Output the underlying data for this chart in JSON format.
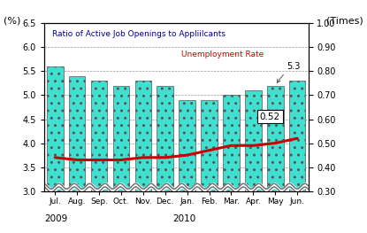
{
  "months": [
    "Jul.",
    "Aug.",
    "Sep.",
    "Oct.",
    "Nov.",
    "Dec.",
    "Jan.",
    "Feb.",
    "Mar.",
    "Apr.",
    "May",
    "Jun."
  ],
  "unemployment_rate": [
    5.6,
    5.4,
    5.3,
    5.2,
    5.3,
    5.2,
    4.9,
    4.9,
    5.0,
    5.1,
    5.2,
    5.3
  ],
  "job_ratio": [
    0.44,
    0.43,
    0.43,
    0.43,
    0.44,
    0.44,
    0.45,
    0.47,
    0.49,
    0.49,
    0.5,
    0.52
  ],
  "bar_color": "#40E0D0",
  "bar_edge_color": "#555555",
  "line_color": "#CC0000",
  "ylabel_left": "(%)",
  "ylabel_right": "(Times)",
  "ylim_left": [
    3.0,
    6.5
  ],
  "ylim_right": [
    0.3,
    1.0
  ],
  "yticks_left": [
    3.0,
    3.5,
    4.0,
    4.5,
    5.0,
    5.5,
    6.0,
    6.5
  ],
  "yticks_right": [
    0.3,
    0.4,
    0.5,
    0.6,
    0.7,
    0.8,
    0.9,
    1.0
  ],
  "legend_bar": "Ratio of Active Job Openings to Appliilcants",
  "legend_line": "Unemployment Rate",
  "annotation_bar": "5.3",
  "annotation_line": "0.52",
  "title_color_bar": "#00008B",
  "title_color_line": "#CC0000",
  "background_color": "#ffffff",
  "grid_color": "#999999"
}
